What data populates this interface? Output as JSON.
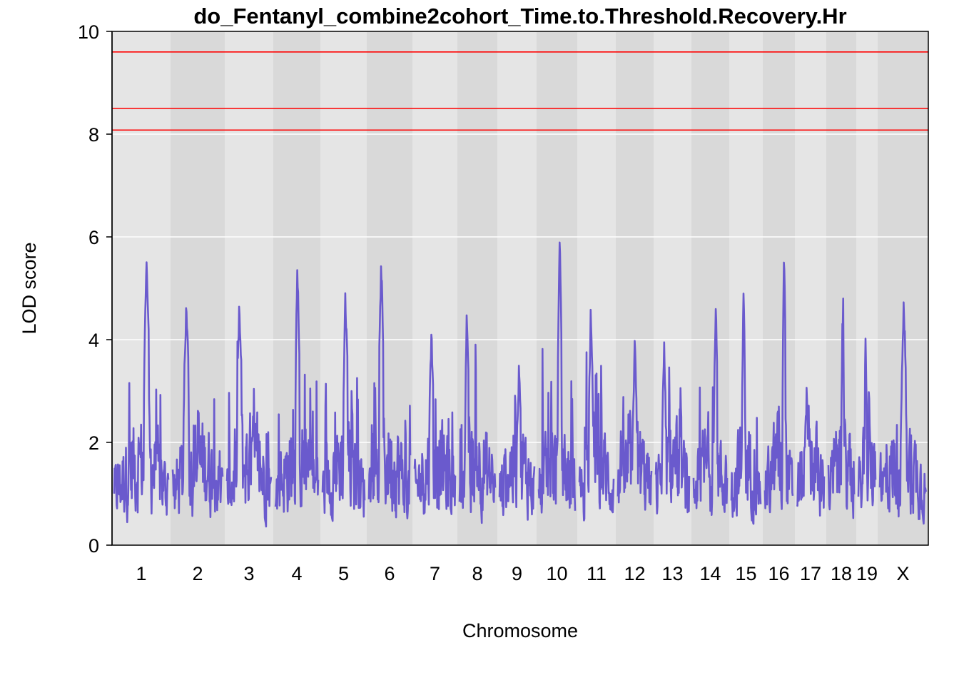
{
  "chart_data": {
    "type": "line",
    "title": "do_Fentanyl_combine2cohort_Time.to.Threshold.Recovery.Hr",
    "xlabel": "Chromosome",
    "ylabel": "LOD score",
    "ylim": [
      0,
      10
    ],
    "y_ticks": [
      0,
      2,
      4,
      6,
      8,
      10
    ],
    "grid": true,
    "colors": {
      "lod_line": "#6a5acd",
      "threshold": "#ff0000",
      "band_light": "#e5e5e5",
      "band_dark": "#d9d9d9",
      "gridline": "#ffffff"
    },
    "thresholds": [
      9.6,
      8.5,
      8.08
    ],
    "chromosomes": [
      {
        "name": "1",
        "peak": 5.65
      },
      {
        "name": "2",
        "peak": 4.9
      },
      {
        "name": "3",
        "peak": 4.95
      },
      {
        "name": "4",
        "peak": 5.65
      },
      {
        "name": "5",
        "peak": 5.15
      },
      {
        "name": "6",
        "peak": 5.75
      },
      {
        "name": "7",
        "peak": 4.35
      },
      {
        "name": "8",
        "peak": 4.8
      },
      {
        "name": "9",
        "peak": 3.8
      },
      {
        "name": "10",
        "peak": 6.15
      },
      {
        "name": "11",
        "peak": 4.95
      },
      {
        "name": "12",
        "peak": 4.2
      },
      {
        "name": "13",
        "peak": 4.2
      },
      {
        "name": "14",
        "peak": 4.85
      },
      {
        "name": "15",
        "peak": 5.15
      },
      {
        "name": "16",
        "peak": 5.85
      },
      {
        "name": "17",
        "peak": 3.35
      },
      {
        "name": "18",
        "peak": 4.8
      },
      {
        "name": "19",
        "peak": 4.3
      },
      {
        "name": "X",
        "peak": 5.0
      }
    ]
  }
}
